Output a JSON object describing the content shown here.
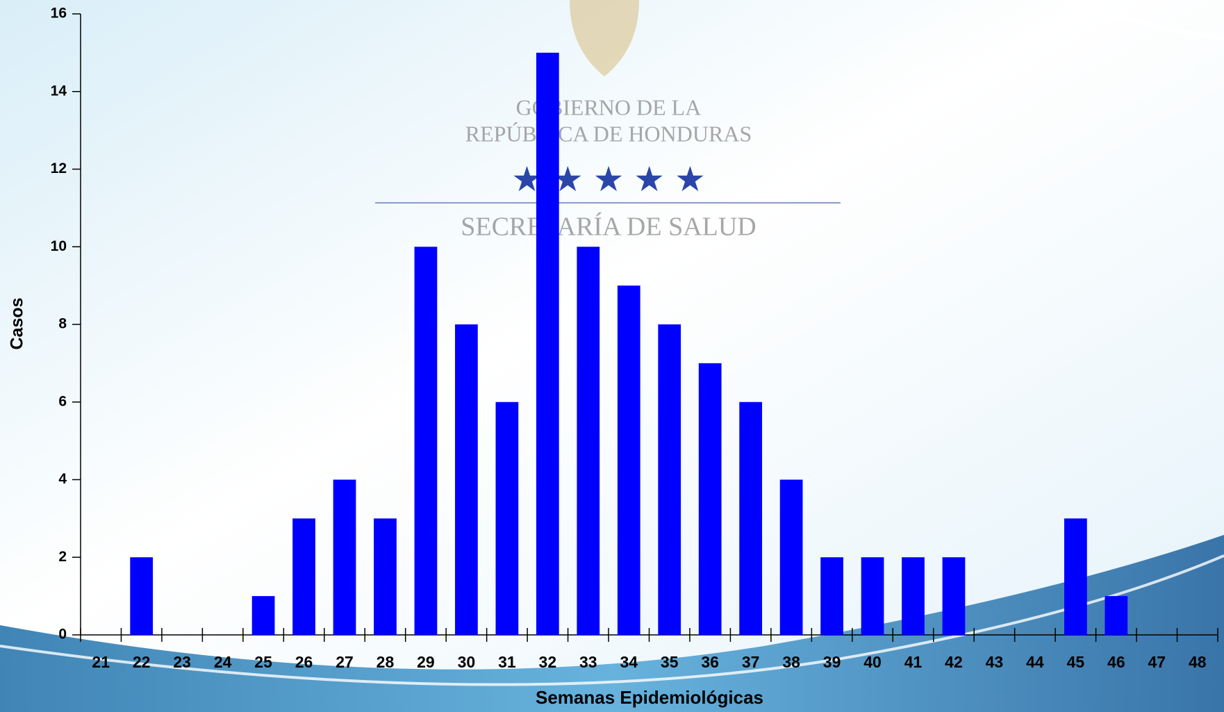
{
  "chart_data": {
    "type": "bar",
    "x_label": "Semanas Epidemiológicas",
    "y_label": "Casos",
    "watermark": [
      "GOBIERNO DE LA",
      "REPÚBLICA DE HONDURAS",
      "SECRETARÍA DE SALUD"
    ],
    "categories": [
      "21",
      "22",
      "23",
      "24",
      "25",
      "26",
      "27",
      "28",
      "29",
      "30",
      "31",
      "32",
      "33",
      "34",
      "35",
      "36",
      "37",
      "38",
      "39",
      "40",
      "41",
      "42",
      "43",
      "44",
      "45",
      "46",
      "47",
      "48"
    ],
    "values": [
      0,
      2,
      0,
      0,
      1,
      3,
      4,
      3,
      10,
      8,
      6,
      15,
      10,
      9,
      8,
      7,
      6,
      4,
      2,
      2,
      2,
      2,
      0,
      0,
      3,
      1,
      0,
      0
    ],
    "color": "#0000ff",
    "ylim": [
      0,
      16
    ],
    "yticks": [
      0,
      2,
      4,
      6,
      8,
      10,
      12,
      14,
      16
    ],
    "grid": false
  }
}
